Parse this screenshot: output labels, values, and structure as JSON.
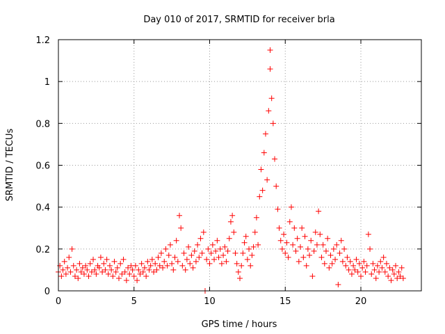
{
  "chart_data": {
    "type": "scatter",
    "title": "Day 010 of 2017, SRMTID for receiver brla",
    "xlabel": "GPS time / hours",
    "ylabel": "SRMTID / TECUs",
    "xlim": [
      0,
      24
    ],
    "ylim": [
      0,
      1.2
    ],
    "x_ticks": [
      0,
      5,
      10,
      15,
      20
    ],
    "x_tick_labels": [
      "0",
      "5",
      "10",
      "15",
      "20"
    ],
    "y_ticks": [
      0,
      0.2,
      0.4,
      0.6,
      0.8,
      1,
      1.2
    ],
    "y_tick_labels": [
      "0",
      "0.2",
      "0.4",
      "0.6",
      "0.8",
      "1",
      "1.2"
    ],
    "grid": true,
    "marker": "+",
    "color": "#ff0000",
    "series": [
      {
        "name": "SRMTID",
        "points": [
          [
            0.0,
            0.09
          ],
          [
            0.1,
            0.12
          ],
          [
            0.2,
            0.07
          ],
          [
            0.3,
            0.1
          ],
          [
            0.4,
            0.14
          ],
          [
            0.5,
            0.08
          ],
          [
            0.6,
            0.11
          ],
          [
            0.7,
            0.16
          ],
          [
            0.8,
            0.09
          ],
          [
            0.9,
            0.2
          ],
          [
            1.0,
            0.12
          ],
          [
            1.1,
            0.07
          ],
          [
            1.2,
            0.1
          ],
          [
            1.3,
            0.06
          ],
          [
            1.4,
            0.13
          ],
          [
            1.5,
            0.09
          ],
          [
            1.6,
            0.11
          ],
          [
            1.7,
            0.08
          ],
          [
            1.8,
            0.12
          ],
          [
            1.9,
            0.1
          ],
          [
            2.0,
            0.07
          ],
          [
            2.1,
            0.13
          ],
          [
            2.2,
            0.09
          ],
          [
            2.3,
            0.15
          ],
          [
            2.4,
            0.1
          ],
          [
            2.5,
            0.08
          ],
          [
            2.6,
            0.12
          ],
          [
            2.7,
            0.11
          ],
          [
            2.8,
            0.16
          ],
          [
            2.9,
            0.09
          ],
          [
            3.0,
            0.13
          ],
          [
            3.1,
            0.1
          ],
          [
            3.2,
            0.15
          ],
          [
            3.3,
            0.08
          ],
          [
            3.4,
            0.12
          ],
          [
            3.5,
            0.1
          ],
          [
            3.6,
            0.07
          ],
          [
            3.7,
            0.14
          ],
          [
            3.8,
            0.09
          ],
          [
            3.9,
            0.11
          ],
          [
            4.0,
            0.06
          ],
          [
            4.1,
            0.13
          ],
          [
            4.2,
            0.08
          ],
          [
            4.3,
            0.15
          ],
          [
            4.4,
            0.09
          ],
          [
            4.5,
            0.05
          ],
          [
            4.6,
            0.11
          ],
          [
            4.7,
            0.08
          ],
          [
            4.8,
            0.12
          ],
          [
            4.9,
            0.1
          ],
          [
            5.0,
            0.07
          ],
          [
            5.1,
            0.12
          ],
          [
            5.2,
            0.05
          ],
          [
            5.3,
            0.1
          ],
          [
            5.4,
            0.08
          ],
          [
            5.5,
            0.13
          ],
          [
            5.6,
            0.09
          ],
          [
            5.7,
            0.11
          ],
          [
            5.8,
            0.07
          ],
          [
            5.9,
            0.14
          ],
          [
            6.0,
            0.1
          ],
          [
            6.1,
            0.12
          ],
          [
            6.2,
            0.15
          ],
          [
            6.3,
            0.09
          ],
          [
            6.4,
            0.13
          ],
          [
            6.5,
            0.1
          ],
          [
            6.6,
            0.16
          ],
          [
            6.7,
            0.12
          ],
          [
            6.8,
            0.18
          ],
          [
            6.9,
            0.11
          ],
          [
            7.0,
            0.14
          ],
          [
            7.1,
            0.2
          ],
          [
            7.2,
            0.12
          ],
          [
            7.3,
            0.17
          ],
          [
            7.4,
            0.22
          ],
          [
            7.5,
            0.13
          ],
          [
            7.6,
            0.1
          ],
          [
            7.7,
            0.16
          ],
          [
            7.8,
            0.24
          ],
          [
            7.9,
            0.14
          ],
          [
            8.0,
            0.36
          ],
          [
            8.1,
            0.3
          ],
          [
            8.2,
            0.12
          ],
          [
            8.3,
            0.18
          ],
          [
            8.4,
            0.1
          ],
          [
            8.5,
            0.15
          ],
          [
            8.6,
            0.21
          ],
          [
            8.7,
            0.13
          ],
          [
            8.8,
            0.17
          ],
          [
            8.9,
            0.11
          ],
          [
            9.0,
            0.19
          ],
          [
            9.1,
            0.14
          ],
          [
            9.2,
            0.22
          ],
          [
            9.3,
            0.16
          ],
          [
            9.4,
            0.25
          ],
          [
            9.5,
            0.18
          ],
          [
            9.6,
            0.28
          ],
          [
            9.7,
            0.0
          ],
          [
            9.8,
            0.15
          ],
          [
            9.9,
            0.2
          ],
          [
            10.0,
            0.13
          ],
          [
            10.1,
            0.18
          ],
          [
            10.2,
            0.22
          ],
          [
            10.3,
            0.15
          ],
          [
            10.4,
            0.19
          ],
          [
            10.5,
            0.24
          ],
          [
            10.6,
            0.16
          ],
          [
            10.7,
            0.2
          ],
          [
            10.8,
            0.13
          ],
          [
            10.9,
            0.17
          ],
          [
            11.0,
            0.21
          ],
          [
            11.1,
            0.14
          ],
          [
            11.2,
            0.19
          ],
          [
            11.3,
            0.25
          ],
          [
            11.4,
            0.33
          ],
          [
            11.5,
            0.36
          ],
          [
            11.6,
            0.28
          ],
          [
            11.7,
            0.18
          ],
          [
            11.8,
            0.13
          ],
          [
            11.9,
            0.09
          ],
          [
            12.0,
            0.06
          ],
          [
            12.1,
            0.12
          ],
          [
            12.2,
            0.18
          ],
          [
            12.3,
            0.23
          ],
          [
            12.4,
            0.26
          ],
          [
            12.5,
            0.15
          ],
          [
            12.6,
            0.2
          ],
          [
            12.7,
            0.12
          ],
          [
            12.8,
            0.17
          ],
          [
            12.9,
            0.21
          ],
          [
            13.0,
            0.28
          ],
          [
            13.1,
            0.35
          ],
          [
            13.2,
            0.22
          ],
          [
            13.3,
            0.45
          ],
          [
            13.4,
            0.58
          ],
          [
            13.5,
            0.48
          ],
          [
            13.6,
            0.66
          ],
          [
            13.7,
            0.75
          ],
          [
            13.8,
            0.53
          ],
          [
            13.9,
            0.86
          ],
          [
            14.0,
            1.06
          ],
          [
            14.0,
            1.15
          ],
          [
            14.1,
            0.92
          ],
          [
            14.2,
            0.8
          ],
          [
            14.3,
            0.63
          ],
          [
            14.4,
            0.5
          ],
          [
            14.5,
            0.39
          ],
          [
            14.6,
            0.3
          ],
          [
            14.7,
            0.24
          ],
          [
            14.8,
            0.2
          ],
          [
            14.9,
            0.27
          ],
          [
            15.0,
            0.18
          ],
          [
            15.1,
            0.23
          ],
          [
            15.2,
            0.16
          ],
          [
            15.3,
            0.33
          ],
          [
            15.4,
            0.4
          ],
          [
            15.5,
            0.22
          ],
          [
            15.6,
            0.3
          ],
          [
            15.7,
            0.19
          ],
          [
            15.8,
            0.25
          ],
          [
            15.9,
            0.14
          ],
          [
            16.0,
            0.21
          ],
          [
            16.1,
            0.3
          ],
          [
            16.2,
            0.16
          ],
          [
            16.3,
            0.26
          ],
          [
            16.4,
            0.12
          ],
          [
            16.5,
            0.2
          ],
          [
            16.6,
            0.17
          ],
          [
            16.7,
            0.24
          ],
          [
            16.8,
            0.07
          ],
          [
            16.9,
            0.19
          ],
          [
            17.0,
            0.28
          ],
          [
            17.1,
            0.22
          ],
          [
            17.2,
            0.38
          ],
          [
            17.3,
            0.27
          ],
          [
            17.4,
            0.16
          ],
          [
            17.5,
            0.22
          ],
          [
            17.6,
            0.13
          ],
          [
            17.7,
            0.19
          ],
          [
            17.8,
            0.25
          ],
          [
            17.9,
            0.11
          ],
          [
            18.0,
            0.17
          ],
          [
            18.1,
            0.13
          ],
          [
            18.2,
            0.2
          ],
          [
            18.3,
            0.15
          ],
          [
            18.4,
            0.22
          ],
          [
            18.5,
            0.03
          ],
          [
            18.6,
            0.18
          ],
          [
            18.7,
            0.24
          ],
          [
            18.8,
            0.14
          ],
          [
            18.9,
            0.2
          ],
          [
            19.0,
            0.12
          ],
          [
            19.1,
            0.16
          ],
          [
            19.2,
            0.1
          ],
          [
            19.3,
            0.14
          ],
          [
            19.4,
            0.08
          ],
          [
            19.5,
            0.12
          ],
          [
            19.6,
            0.1
          ],
          [
            19.7,
            0.15
          ],
          [
            19.8,
            0.09
          ],
          [
            19.9,
            0.13
          ],
          [
            20.0,
            0.07
          ],
          [
            20.1,
            0.11
          ],
          [
            20.2,
            0.14
          ],
          [
            20.3,
            0.09
          ],
          [
            20.4,
            0.12
          ],
          [
            20.5,
            0.27
          ],
          [
            20.6,
            0.2
          ],
          [
            20.7,
            0.08
          ],
          [
            20.8,
            0.13
          ],
          [
            20.9,
            0.1
          ],
          [
            21.0,
            0.06
          ],
          [
            21.1,
            0.12
          ],
          [
            21.2,
            0.09
          ],
          [
            21.3,
            0.14
          ],
          [
            21.4,
            0.11
          ],
          [
            21.5,
            0.16
          ],
          [
            21.6,
            0.09
          ],
          [
            21.7,
            0.13
          ],
          [
            21.8,
            0.07
          ],
          [
            21.9,
            0.11
          ],
          [
            22.0,
            0.05
          ],
          [
            22.1,
            0.1
          ],
          [
            22.2,
            0.08
          ],
          [
            22.3,
            0.12
          ],
          [
            22.4,
            0.06
          ],
          [
            22.5,
            0.09
          ],
          [
            22.6,
            0.07
          ],
          [
            22.7,
            0.11
          ],
          [
            22.8,
            0.06
          ]
        ]
      }
    ]
  }
}
